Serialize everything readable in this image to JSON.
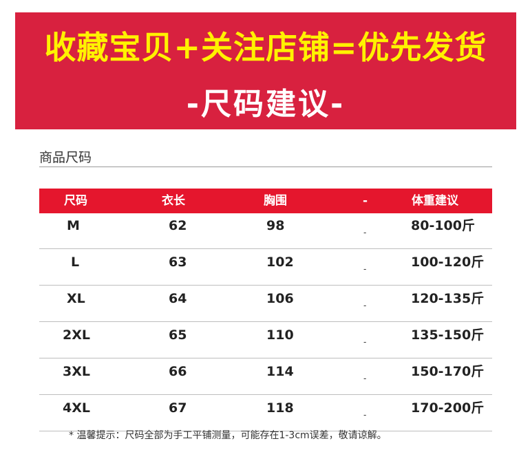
{
  "banner": {
    "line1": "收藏宝贝+关注店铺=优先发货",
    "line2": "-尺码建议-"
  },
  "section": {
    "title": "商品尺码"
  },
  "table": {
    "headers": [
      "尺码",
      "衣长",
      "胸围",
      "-",
      "体重建议"
    ],
    "rows": [
      {
        "size": "M",
        "length": "62",
        "chest": "98",
        "dash": "-",
        "weight": "80-100斤"
      },
      {
        "size": "L",
        "length": "63",
        "chest": "102",
        "dash": "-",
        "weight": "100-120斤"
      },
      {
        "size": "XL",
        "length": "64",
        "chest": "106",
        "dash": "-",
        "weight": "120-135斤"
      },
      {
        "size": "2XL",
        "length": "65",
        "chest": "110",
        "dash": "-",
        "weight": "135-150斤"
      },
      {
        "size": "3XL",
        "length": "66",
        "chest": "114",
        "dash": "-",
        "weight": "150-170斤"
      },
      {
        "size": "4XL",
        "length": "67",
        "chest": "118",
        "dash": "-",
        "weight": "170-200斤"
      }
    ]
  },
  "note": "* 温馨提示：尺码全部为手工平铺测量，可能存在1-3cm误差，敬请谅解。",
  "colors": {
    "banner_bg": "#d8213f",
    "banner_line1": "#fff200",
    "header_bg": "#e5162d"
  }
}
